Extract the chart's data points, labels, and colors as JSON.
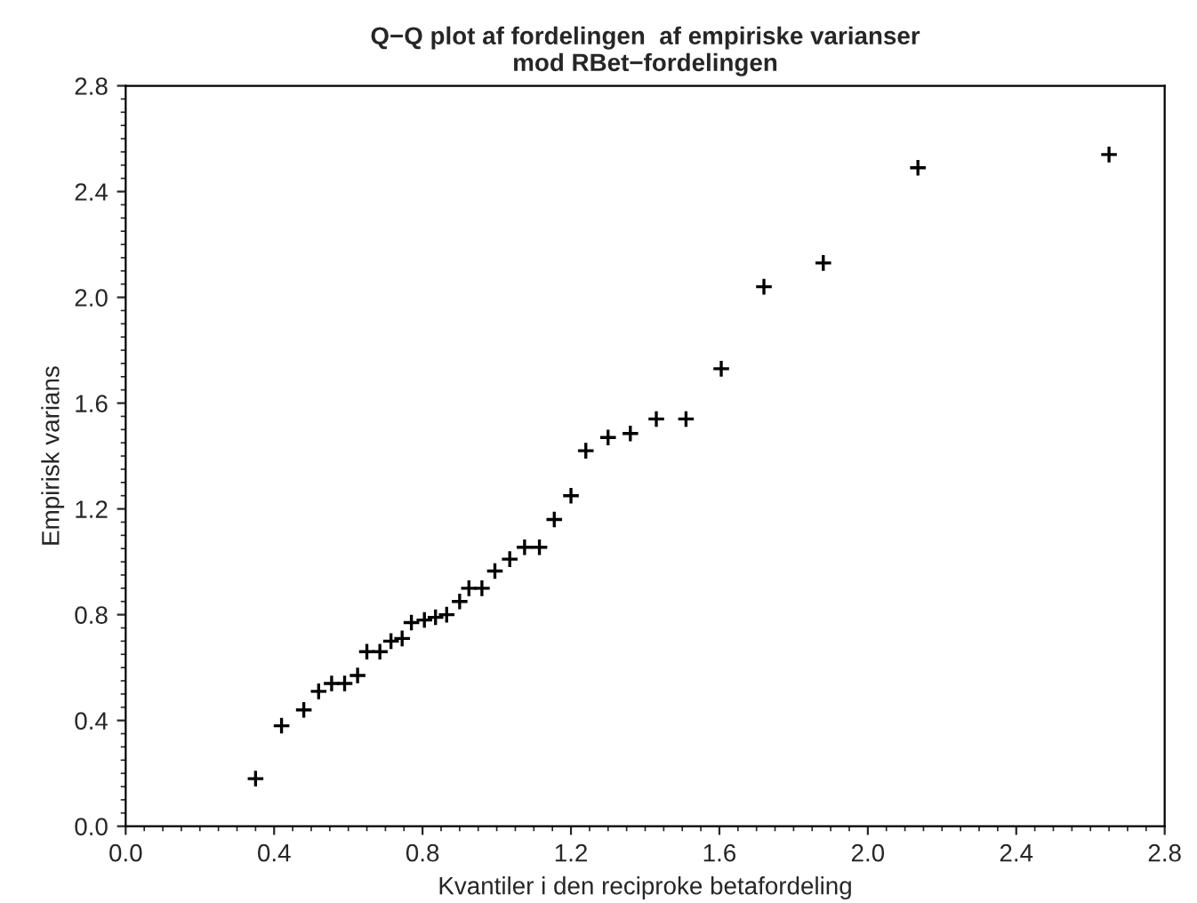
{
  "chart_data": {
    "type": "scatter",
    "title": "Q−Q plot af fordelingen  af empiriske varianser\nmod RBet−fordelingen",
    "xlabel": "Kvantiler i den reciproke betafordeling",
    "ylabel": "Empirisk varians",
    "x": [
      0.35,
      0.42,
      0.48,
      0.52,
      0.555,
      0.59,
      0.625,
      0.65,
      0.685,
      0.715,
      0.745,
      0.77,
      0.805,
      0.835,
      0.865,
      0.9,
      0.925,
      0.96,
      0.995,
      1.035,
      1.075,
      1.115,
      1.155,
      1.2,
      1.24,
      1.3,
      1.36,
      1.43,
      1.51,
      1.605,
      1.72,
      1.88,
      2.135,
      2.65
    ],
    "series": [
      {
        "color": "#000000",
        "values": [
          0.18,
          0.38,
          0.44,
          0.51,
          0.54,
          0.54,
          0.57,
          0.66,
          0.66,
          0.7,
          0.71,
          0.77,
          0.78,
          0.79,
          0.8,
          0.85,
          0.9,
          0.9,
          0.965,
          1.01,
          1.055,
          1.055,
          1.16,
          1.25,
          1.42,
          1.47,
          1.485,
          1.54,
          1.54,
          1.73,
          2.04,
          2.13,
          2.49,
          2.54
        ]
      }
    ],
    "xlim": [
      0,
      2.8
    ],
    "ylim": [
      0,
      2.8
    ],
    "xticks": [
      {
        "value": 0,
        "label": "0.0"
      },
      {
        "value": 0.4,
        "label": "0.4"
      },
      {
        "value": 0.8,
        "label": "0.8"
      },
      {
        "value": 1.2,
        "label": "1.2"
      },
      {
        "value": 1.6,
        "label": "1.6"
      },
      {
        "value": 2.0,
        "label": "2.0"
      },
      {
        "value": 2.4,
        "label": "2.4"
      },
      {
        "value": 2.8,
        "label": "2.8"
      }
    ],
    "yticks": [
      {
        "value": 0,
        "label": "0.0"
      },
      {
        "value": 0.4,
        "label": "0.4"
      },
      {
        "value": 0.8,
        "label": "0.8"
      },
      {
        "value": 1.2,
        "label": "1.2"
      },
      {
        "value": 1.6,
        "label": "1.6"
      },
      {
        "value": 2.0,
        "label": "2.0"
      },
      {
        "value": 2.4,
        "label": "2.4"
      },
      {
        "value": 2.8,
        "label": "2.8"
      }
    ],
    "marker": "cross",
    "grid": false,
    "legend": false
  }
}
